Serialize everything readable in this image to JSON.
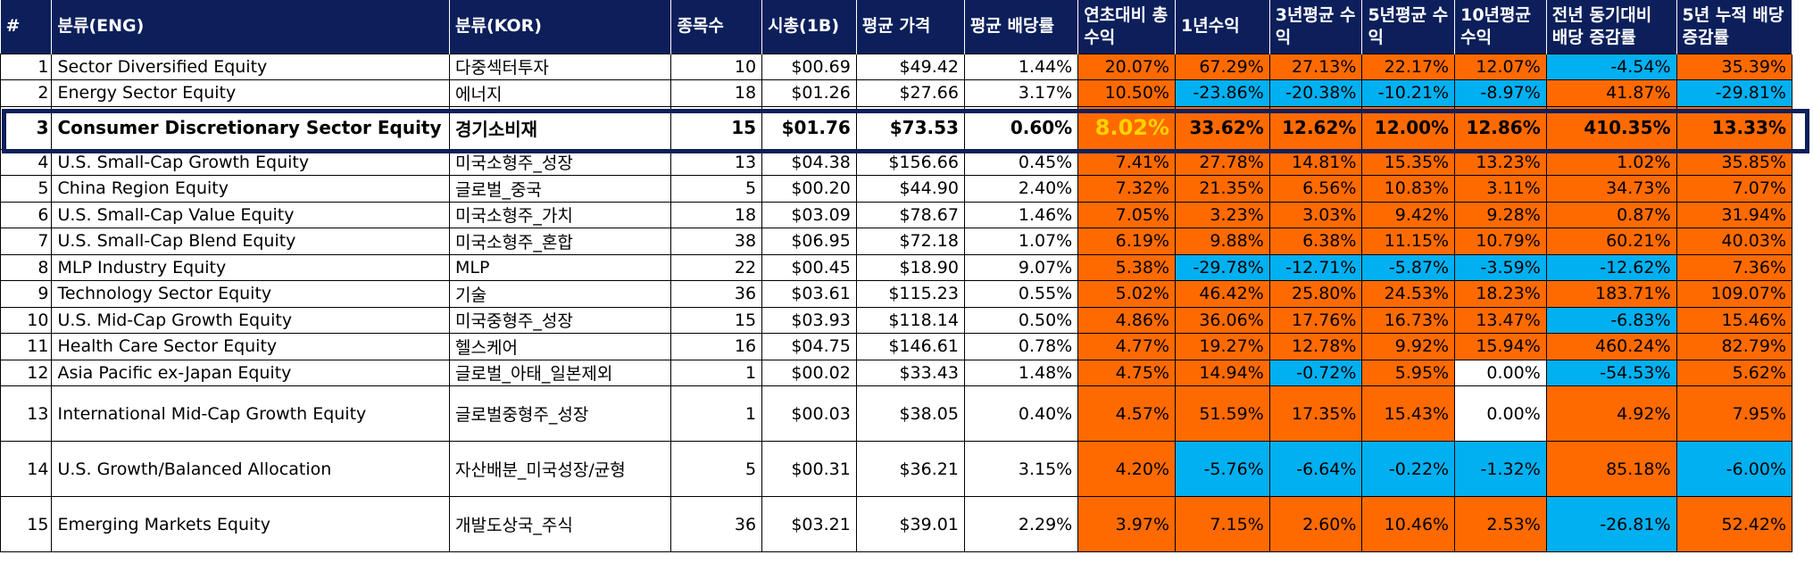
{
  "headers": [
    "#",
    "분류(ENG)",
    "분류(KOR)",
    "종목수",
    "시총(1B)",
    "평균 가격",
    "평균 배당률",
    "연초대비 총수익",
    "1년수익",
    "3년평균 수익",
    "5년평균 수익",
    "10년평균 수익",
    "전년 동기대비 배당 증감률",
    "5년 누적 배당 증감률"
  ],
  "colors": {
    "header_bg": "#0c1f5b",
    "positive": "#ff6a00",
    "negative": "#00b0f0",
    "highlight_text": "#ffd200"
  },
  "rows": [
    {
      "idx": "1",
      "eng": "Sector Diversified Equity",
      "kor": "다중섹터투자",
      "count": "10",
      "mcap": "$00.69",
      "price": "$49.42",
      "div": "1.44%",
      "ytd": "20.07%",
      "y1": "67.29%",
      "y3": "27.13%",
      "y5": "22.17%",
      "y10": "12.07%",
      "yoy": "-4.54%",
      "cum5": "35.39%"
    },
    {
      "idx": "2",
      "eng": "Energy Sector Equity",
      "kor": "에너지",
      "count": "18",
      "mcap": "$01.26",
      "price": "$27.66",
      "div": "3.17%",
      "ytd": "10.50%",
      "y1": "-23.86%",
      "y3": "-20.38%",
      "y5": "-10.21%",
      "y10": "-8.97%",
      "yoy": "41.87%",
      "cum5": "-29.81%"
    },
    {
      "idx": "3",
      "eng": "Consumer Discretionary Sector Equity",
      "kor": "경기소비재",
      "count": "15",
      "mcap": "$01.76",
      "price": "$73.53",
      "div": "0.60%",
      "ytd": "8.02%",
      "y1": "33.62%",
      "y3": "12.62%",
      "y5": "12.00%",
      "y10": "12.86%",
      "yoy": "410.35%",
      "cum5": "13.33%"
    },
    {
      "idx": "4",
      "eng": "U.S. Small-Cap Growth Equity",
      "kor": "미국소형주_성장",
      "count": "13",
      "mcap": "$04.38",
      "price": "$156.66",
      "div": "0.45%",
      "ytd": "7.41%",
      "y1": "27.78%",
      "y3": "14.81%",
      "y5": "15.35%",
      "y10": "13.23%",
      "yoy": "1.02%",
      "cum5": "35.85%"
    },
    {
      "idx": "5",
      "eng": "China Region Equity",
      "kor": "글로벌_중국",
      "count": "5",
      "mcap": "$00.20",
      "price": "$44.90",
      "div": "2.40%",
      "ytd": "7.32%",
      "y1": "21.35%",
      "y3": "6.56%",
      "y5": "10.83%",
      "y10": "3.11%",
      "yoy": "34.73%",
      "cum5": "7.07%"
    },
    {
      "idx": "6",
      "eng": "U.S. Small-Cap Value Equity",
      "kor": "미국소형주_가치",
      "count": "18",
      "mcap": "$03.09",
      "price": "$78.67",
      "div": "1.46%",
      "ytd": "7.05%",
      "y1": "3.23%",
      "y3": "3.03%",
      "y5": "9.42%",
      "y10": "9.28%",
      "yoy": "0.87%",
      "cum5": "31.94%"
    },
    {
      "idx": "7",
      "eng": "U.S. Small-Cap Blend Equity",
      "kor": "미국소형주_혼합",
      "count": "38",
      "mcap": "$06.95",
      "price": "$72.18",
      "div": "1.07%",
      "ytd": "6.19%",
      "y1": "9.88%",
      "y3": "6.38%",
      "y5": "11.15%",
      "y10": "10.79%",
      "yoy": "60.21%",
      "cum5": "40.03%"
    },
    {
      "idx": "8",
      "eng": "MLP Industry Equity",
      "kor": "MLP",
      "count": "22",
      "mcap": "$00.45",
      "price": "$18.90",
      "div": "9.07%",
      "ytd": "5.38%",
      "y1": "-29.78%",
      "y3": "-12.71%",
      "y5": "-5.87%",
      "y10": "-3.59%",
      "yoy": "-12.62%",
      "cum5": "7.36%"
    },
    {
      "idx": "9",
      "eng": "Technology Sector Equity",
      "kor": "기술",
      "count": "36",
      "mcap": "$03.61",
      "price": "$115.23",
      "div": "0.55%",
      "ytd": "5.02%",
      "y1": "46.42%",
      "y3": "25.80%",
      "y5": "24.53%",
      "y10": "18.23%",
      "yoy": "183.71%",
      "cum5": "109.07%"
    },
    {
      "idx": "10",
      "eng": "U.S. Mid-Cap Growth Equity",
      "kor": "미국중형주_성장",
      "count": "15",
      "mcap": "$03.93",
      "price": "$118.14",
      "div": "0.50%",
      "ytd": "4.86%",
      "y1": "36.06%",
      "y3": "17.76%",
      "y5": "16.73%",
      "y10": "13.47%",
      "yoy": "-6.83%",
      "cum5": "15.46%"
    },
    {
      "idx": "11",
      "eng": "Health Care Sector Equity",
      "kor": "헬스케어",
      "count": "16",
      "mcap": "$04.75",
      "price": "$146.61",
      "div": "0.78%",
      "ytd": "4.77%",
      "y1": "19.27%",
      "y3": "12.78%",
      "y5": "9.92%",
      "y10": "15.94%",
      "yoy": "460.24%",
      "cum5": "82.79%"
    },
    {
      "idx": "12",
      "eng": "Asia Pacific ex-Japan Equity",
      "kor": "글로벌_아태_일본제외",
      "count": "1",
      "mcap": "$00.02",
      "price": "$33.43",
      "div": "1.48%",
      "ytd": "4.75%",
      "y1": "14.94%",
      "y3": "-0.72%",
      "y5": "5.95%",
      "y10": "0.00%",
      "yoy": "-54.53%",
      "cum5": "5.62%"
    },
    {
      "idx": "13",
      "eng": "International Mid-Cap Growth Equity",
      "kor": "글로벌중형주_성장",
      "count": "1",
      "mcap": "$00.03",
      "price": "$38.05",
      "div": "0.40%",
      "ytd": "4.57%",
      "y1": "51.59%",
      "y3": "17.35%",
      "y5": "15.43%",
      "y10": "0.00%",
      "yoy": "4.92%",
      "cum5": "7.95%"
    },
    {
      "idx": "14",
      "eng": "U.S. Growth/Balanced Allocation",
      "kor": "자산배분_미국성장/균형",
      "count": "5",
      "mcap": "$00.31",
      "price": "$36.21",
      "div": "3.15%",
      "ytd": "4.20%",
      "y1": "-5.76%",
      "y3": "-6.64%",
      "y5": "-0.22%",
      "y10": "-1.32%",
      "yoy": "85.18%",
      "cum5": "-6.00%"
    },
    {
      "idx": "15",
      "eng": "Emerging Markets Equity",
      "kor": "개발도상국_주식",
      "count": "36",
      "mcap": "$03.21",
      "price": "$39.01",
      "div": "2.29%",
      "ytd": "3.97%",
      "y1": "7.15%",
      "y3": "2.60%",
      "y5": "10.46%",
      "y10": "2.53%",
      "yoy": "-26.81%",
      "cum5": "52.42%"
    }
  ]
}
